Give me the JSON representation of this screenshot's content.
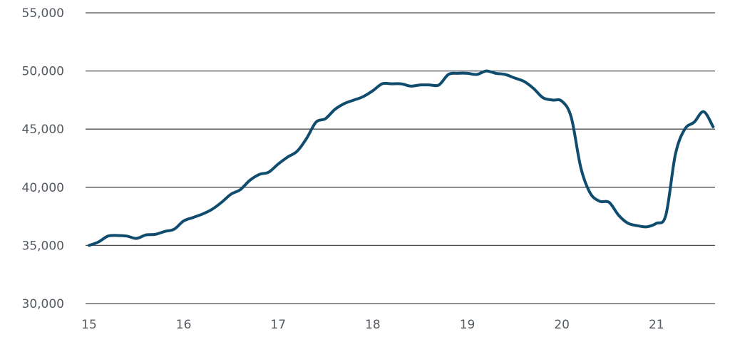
{
  "chart_data": {
    "type": "line",
    "title": "",
    "xlabel": "",
    "ylabel": "",
    "xlim": [
      15,
      21.62
    ],
    "ylim": [
      30000,
      55000
    ],
    "y_ticks": [
      30000,
      35000,
      40000,
      45000,
      50000,
      55000
    ],
    "y_tick_labels": [
      "30,000",
      "35,000",
      "40,000",
      "45,000",
      "50,000",
      "55,000"
    ],
    "x_ticks": [
      15,
      16,
      17,
      18,
      19,
      20,
      21
    ],
    "x_tick_labels": [
      "15",
      "16",
      "17",
      "18",
      "19",
      "20",
      "21"
    ],
    "grid": true,
    "legend": "none",
    "series": [
      {
        "color": "#0f4c6e",
        "x": [
          15.0,
          15.1,
          15.2,
          15.3,
          15.4,
          15.5,
          15.6,
          15.7,
          15.8,
          15.9,
          16.0,
          16.1,
          16.2,
          16.3,
          16.4,
          16.5,
          16.6,
          16.7,
          16.8,
          16.9,
          17.0,
          17.1,
          17.2,
          17.3,
          17.4,
          17.5,
          17.6,
          17.7,
          17.8,
          17.9,
          18.0,
          18.1,
          18.2,
          18.3,
          18.4,
          18.5,
          18.6,
          18.7,
          18.8,
          18.9,
          19.0,
          19.1,
          19.2,
          19.3,
          19.4,
          19.5,
          19.6,
          19.7,
          19.8,
          19.9,
          20.0,
          20.1,
          20.2,
          20.3,
          20.4,
          20.5,
          20.6,
          20.7,
          20.8,
          20.9,
          21.0,
          21.1,
          21.2,
          21.3,
          21.4,
          21.5,
          21.6
        ],
        "y": [
          35000,
          35300,
          35800,
          35850,
          35800,
          35600,
          35900,
          35950,
          36200,
          36400,
          37100,
          37400,
          37700,
          38100,
          38700,
          39400,
          39800,
          40600,
          41100,
          41300,
          42000,
          42600,
          43100,
          44200,
          45600,
          45900,
          46700,
          47200,
          47500,
          47800,
          48300,
          48900,
          48900,
          48900,
          48700,
          48800,
          48800,
          48800,
          49700,
          49800,
          49800,
          49700,
          50000,
          49800,
          49700,
          49400,
          49100,
          48500,
          47700,
          47500,
          47400,
          46000,
          41700,
          39500,
          38800,
          38700,
          37600,
          36900,
          36700,
          36600,
          36900,
          37600,
          42800,
          45000,
          45600,
          46500,
          45200
        ]
      }
    ]
  }
}
